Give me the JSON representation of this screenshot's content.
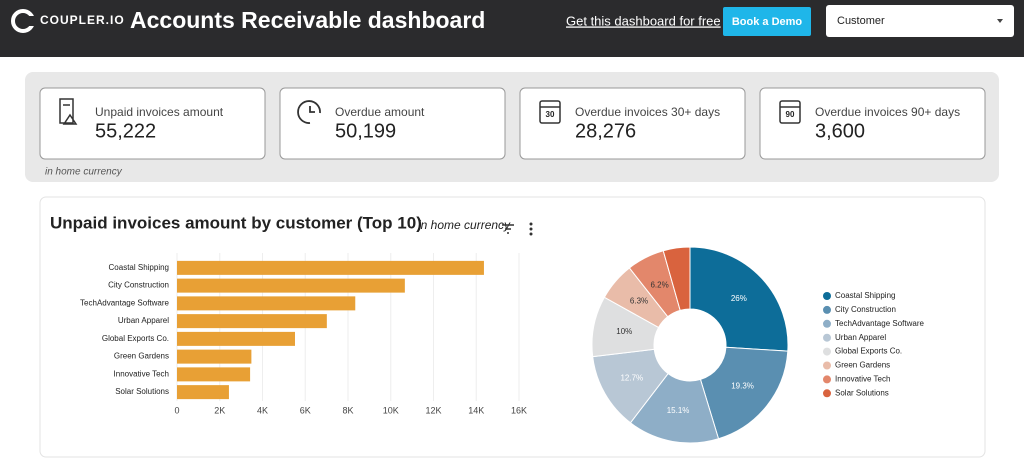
{
  "header": {
    "logo": "COUPLER.IO",
    "title": "Accounts Receivable dashboard",
    "link": "Get this dashboard for free",
    "button": "Book a Demo",
    "dropdown": "Customer"
  },
  "cards": [
    {
      "label": "Unpaid invoices amount",
      "value": "55,222"
    },
    {
      "label": "Overdue amount",
      "value": "50,199"
    },
    {
      "label": "Overdue invoices 30+ days",
      "value": "28,276",
      "icon_text": "30"
    },
    {
      "label": "Overdue invoices 90+ days",
      "value": "3,600",
      "icon_text": "90"
    }
  ],
  "cards_note": "in home currency",
  "section": {
    "title": "Unpaid invoices amount by customer (Top 10)",
    "subtitle": "in home currency"
  },
  "chart_data": [
    {
      "type": "bar",
      "orientation": "horizontal",
      "categories": [
        "Coastal Shipping",
        "City Construction",
        "TechAdvantage Software",
        "Urban Apparel",
        "Global Exports Co.",
        "Green Gardens",
        "Innovative Tech",
        "Solar Solutions"
      ],
      "values": [
        14360,
        10660,
        8340,
        7010,
        5520,
        3480,
        3420,
        2430
      ],
      "color": "#e8a035",
      "xlim": [
        0,
        16000
      ],
      "xticks": [
        0,
        {
          "value": 2000,
          "label": "2K"
        },
        {
          "value": 4000,
          "label": "4K"
        },
        {
          "value": 6000,
          "label": "6K"
        },
        {
          "value": 8000,
          "label": "8K"
        },
        {
          "value": 10000,
          "label": "10K"
        },
        {
          "value": 12000,
          "label": "12K"
        },
        {
          "value": 14000,
          "label": "14K"
        },
        {
          "value": 16000,
          "label": "16K"
        }
      ],
      "grid": true
    },
    {
      "type": "pie",
      "donut": true,
      "categories": [
        "Coastal Shipping",
        "City Construction",
        "TechAdvantage Software",
        "Urban Apparel",
        "Global Exports Co.",
        "Green Gardens",
        "Innovative Tech",
        "Solar Solutions"
      ],
      "values": [
        26,
        19.3,
        15.1,
        12.7,
        10,
        6.3,
        6.2,
        4.4
      ],
      "value_labels": [
        "26%",
        "19.3%",
        "15.1%",
        "12.7%",
        "10%",
        "6.3%",
        "6.2%",
        null
      ],
      "colors": [
        "#0d6d99",
        "#5a8fb1",
        "#8eaec7",
        "#b8c7d5",
        "#dedfe0",
        "#e9bca9",
        "#e3876b",
        "#d9633e"
      ],
      "legend": "right"
    }
  ]
}
